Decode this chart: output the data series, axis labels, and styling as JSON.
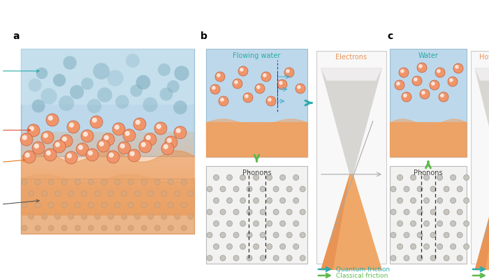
{
  "bg_color": "#ffffff",
  "teal": "#2aabaa",
  "green": "#5dba4a",
  "orange_mol": "#f0956a",
  "blue_water": "#b8d8ea",
  "label_a": "a",
  "label_b": "b",
  "label_c": "c"
}
